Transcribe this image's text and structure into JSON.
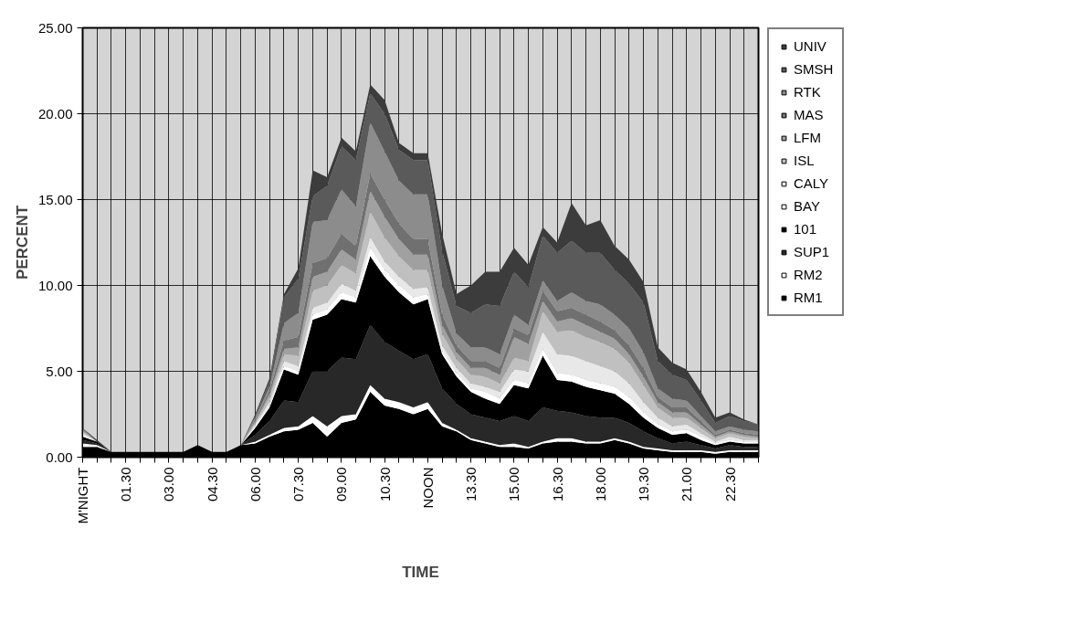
{
  "chart_data": {
    "type": "area",
    "stacked": true,
    "xlabel": "TIME",
    "ylabel": "PERCENT",
    "categories": [
      "M'NIGHT",
      null,
      null,
      "01.30",
      null,
      null,
      "03.00",
      null,
      null,
      "04.30",
      null,
      null,
      "06.00",
      null,
      null,
      "07.30",
      null,
      null,
      "09.00",
      null,
      null,
      "10.30",
      null,
      null,
      "NOON",
      null,
      null,
      "13.30",
      null,
      null,
      "15.00",
      null,
      null,
      "16.30",
      null,
      null,
      "18.00",
      null,
      null,
      "19.30",
      null,
      null,
      "21.00",
      null,
      null,
      "22.30",
      null,
      null
    ],
    "ylim": [
      0,
      25
    ],
    "yticks": [
      {
        "value": 0,
        "label": "0.00"
      },
      {
        "value": 5,
        "label": "5.00"
      },
      {
        "value": 10,
        "label": "10.00"
      },
      {
        "value": 15,
        "label": "15.00"
      },
      {
        "value": 20,
        "label": "20.00"
      },
      {
        "value": 25,
        "label": "25.00"
      }
    ],
    "grid": true,
    "legend": "right",
    "series": [
      {
        "name": "RM1",
        "color": "#000000",
        "values": [
          0.6,
          0.6,
          0.3,
          0.3,
          0.3,
          0.3,
          0.3,
          0.3,
          0.7,
          0.3,
          0.3,
          0.7,
          0.8,
          1.2,
          1.5,
          1.6,
          2.0,
          1.2,
          2.0,
          2.2,
          3.8,
          3.0,
          2.8,
          2.5,
          2.8,
          1.8,
          1.5,
          1.0,
          0.8,
          0.6,
          0.6,
          0.5,
          0.8,
          0.9,
          0.9,
          0.8,
          0.8,
          1.0,
          0.8,
          0.5,
          0.4,
          0.3,
          0.3,
          0.3,
          0.2,
          0.3,
          0.3,
          0.3
        ]
      },
      {
        "name": "RM2",
        "color": "#ffffff",
        "values": [
          0.2,
          0.1,
          0,
          0,
          0,
          0,
          0,
          0,
          0,
          0,
          0,
          0,
          0.1,
          0.1,
          0.2,
          0.2,
          0.4,
          0.6,
          0.4,
          0.3,
          0.4,
          0.4,
          0.4,
          0.4,
          0.4,
          0.2,
          0.1,
          0.1,
          0.1,
          0.1,
          0.2,
          0.1,
          0.1,
          0.2,
          0.2,
          0.1,
          0.1,
          0.1,
          0.1,
          0.1,
          0.1,
          0.1,
          0.1,
          0.1,
          0.1,
          0.1,
          0.1,
          0.1
        ]
      },
      {
        "name": "SUP1",
        "color": "#282828",
        "values": [
          0.2,
          0.1,
          0,
          0,
          0,
          0,
          0,
          0,
          0,
          0,
          0,
          0,
          0.4,
          0.8,
          1.6,
          1.4,
          2.6,
          3.2,
          3.4,
          3.2,
          3.5,
          3.3,
          3.0,
          2.8,
          2.8,
          2.0,
          1.5,
          1.4,
          1.4,
          1.4,
          1.6,
          1.5,
          2.0,
          1.6,
          1.5,
          1.5,
          1.4,
          1.2,
          1.1,
          0.9,
          0.6,
          0.4,
          0.5,
          0.3,
          0.2,
          0.3,
          0.2,
          0.2
        ]
      },
      {
        "name": "101",
        "color": "#000000",
        "values": [
          0.2,
          0.1,
          0,
          0,
          0,
          0,
          0,
          0,
          0,
          0,
          0,
          0,
          0.4,
          0.8,
          1.8,
          1.6,
          3.0,
          3.3,
          3.4,
          3.3,
          4.0,
          3.8,
          3.4,
          3.2,
          3.2,
          2.0,
          1.6,
          1.3,
          1.1,
          1.0,
          1.8,
          1.9,
          3.0,
          1.8,
          1.8,
          1.7,
          1.6,
          1.4,
          1.1,
          0.8,
          0.6,
          0.5,
          0.5,
          0.3,
          0.2,
          0.2,
          0.2,
          0.2
        ]
      },
      {
        "name": "BAY",
        "color": "#ffffff",
        "values": [
          0.1,
          0,
          0,
          0,
          0,
          0,
          0,
          0,
          0,
          0,
          0,
          0,
          0.1,
          0.1,
          0.2,
          0.2,
          0.3,
          0.3,
          0.4,
          0.3,
          0.5,
          0.4,
          0.4,
          0.4,
          0.3,
          0.2,
          0.2,
          0.2,
          0.4,
          0.3,
          0.3,
          0.3,
          0.4,
          0.4,
          0.4,
          0.4,
          0.4,
          0.4,
          0.4,
          0.3,
          0.2,
          0.2,
          0.2,
          0.2,
          0.1,
          0.1,
          0.1,
          0.1
        ]
      },
      {
        "name": "CALY",
        "color": "#e8e8e8",
        "values": [
          0.1,
          0,
          0,
          0,
          0,
          0,
          0,
          0,
          0,
          0,
          0,
          0,
          0.1,
          0.2,
          0.3,
          0.3,
          0.4,
          0.4,
          0.5,
          0.4,
          0.6,
          0.5,
          0.5,
          0.5,
          0.4,
          0.3,
          0.3,
          0.3,
          0.3,
          0.4,
          0.6,
          0.7,
          1.0,
          1.1,
          1.1,
          1.1,
          1.0,
          0.9,
          0.8,
          0.6,
          0.4,
          0.3,
          0.3,
          0.2,
          0.1,
          0.2,
          0.1,
          0.1
        ]
      },
      {
        "name": "ISL",
        "color": "#c0c0c0",
        "values": [
          0.1,
          0,
          0,
          0,
          0,
          0,
          0,
          0,
          0,
          0,
          0,
          0,
          0.1,
          0.3,
          0.4,
          0.6,
          1.0,
          1.0,
          1.1,
          1.0,
          1.5,
          1.4,
          1.2,
          1.1,
          1.0,
          0.7,
          0.5,
          0.5,
          0.6,
          0.5,
          0.7,
          0.6,
          1.2,
          1.3,
          1.5,
          1.4,
          1.4,
          1.3,
          1.2,
          1.0,
          0.6,
          0.5,
          0.4,
          0.3,
          0.2,
          0.2,
          0.2,
          0.1
        ]
      },
      {
        "name": "LFM",
        "color": "#a0a0a0",
        "values": [
          0.1,
          0,
          0,
          0,
          0,
          0,
          0,
          0,
          0,
          0,
          0,
          0,
          0.1,
          0.2,
          0.3,
          0.5,
          0.8,
          0.8,
          0.9,
          0.8,
          1.2,
          1.2,
          1.0,
          0.9,
          0.9,
          0.5,
          0.4,
          0.4,
          0.5,
          0.5,
          1.2,
          1.0,
          0.6,
          0.6,
          0.7,
          0.7,
          0.6,
          0.6,
          0.5,
          0.5,
          0.3,
          0.3,
          0.3,
          0.2,
          0.1,
          0.1,
          0.1,
          0.1
        ]
      },
      {
        "name": "MAS",
        "color": "#707070",
        "values": [
          0.1,
          0,
          0,
          0,
          0,
          0,
          0,
          0,
          0,
          0,
          0,
          0,
          0.1,
          0.2,
          0.5,
          0.6,
          0.8,
          0.8,
          0.9,
          0.8,
          1.0,
          1.0,
          0.9,
          0.9,
          0.9,
          0.6,
          0.4,
          0.4,
          0.4,
          0.4,
          0.5,
          0.5,
          0.6,
          0.6,
          0.6,
          0.6,
          0.6,
          0.5,
          0.5,
          0.5,
          0.3,
          0.3,
          0.3,
          0.2,
          0.1,
          0.1,
          0.1,
          0.1
        ]
      },
      {
        "name": "RTK",
        "color": "#8c8c8c",
        "values": [
          0,
          0,
          0,
          0,
          0,
          0,
          0,
          0,
          0,
          0,
          0,
          0,
          0.1,
          0.2,
          1.0,
          1.4,
          2.4,
          2.2,
          2.6,
          2.3,
          3.0,
          2.8,
          2.5,
          2.6,
          2.6,
          1.7,
          0.7,
          0.8,
          0.8,
          0.8,
          0.8,
          0.6,
          0.6,
          0.6,
          0.9,
          0.8,
          1.0,
          0.9,
          1.0,
          0.9,
          0.5,
          0.5,
          0.4,
          0.3,
          0.2,
          0.2,
          0.2,
          0.2
        ]
      },
      {
        "name": "SMSH",
        "color": "#5a5a5a",
        "values": [
          0,
          0,
          0,
          0,
          0,
          0,
          0,
          0,
          0,
          0,
          0,
          0,
          0.1,
          0.3,
          1.5,
          2.0,
          1.5,
          2.0,
          2.5,
          2.7,
          1.7,
          2.2,
          1.8,
          2.0,
          2.0,
          2.0,
          1.6,
          2.0,
          2.5,
          2.8,
          2.5,
          2.2,
          2.6,
          2.8,
          3.0,
          2.8,
          3.0,
          2.6,
          2.6,
          2.9,
          1.6,
          1.4,
          1.2,
          0.9,
          0.5,
          0.6,
          0.5,
          0.4
        ]
      },
      {
        "name": "UNIV",
        "color": "#3c3c3c",
        "values": [
          0,
          0.1,
          0,
          0,
          0,
          0,
          0,
          0,
          0,
          0,
          0,
          0,
          0.1,
          0.2,
          0.2,
          0.6,
          1.5,
          0.5,
          0.5,
          0.5,
          0.5,
          0.8,
          0.4,
          0.4,
          0.4,
          1.0,
          0.7,
          1.6,
          1.9,
          2.0,
          1.4,
          1.3,
          0.5,
          0.6,
          2.2,
          1.6,
          1.9,
          1.4,
          1.4,
          1.2,
          0.8,
          0.7,
          0.6,
          0.5,
          0.3,
          0.2,
          0.1,
          0
        ]
      }
    ]
  }
}
